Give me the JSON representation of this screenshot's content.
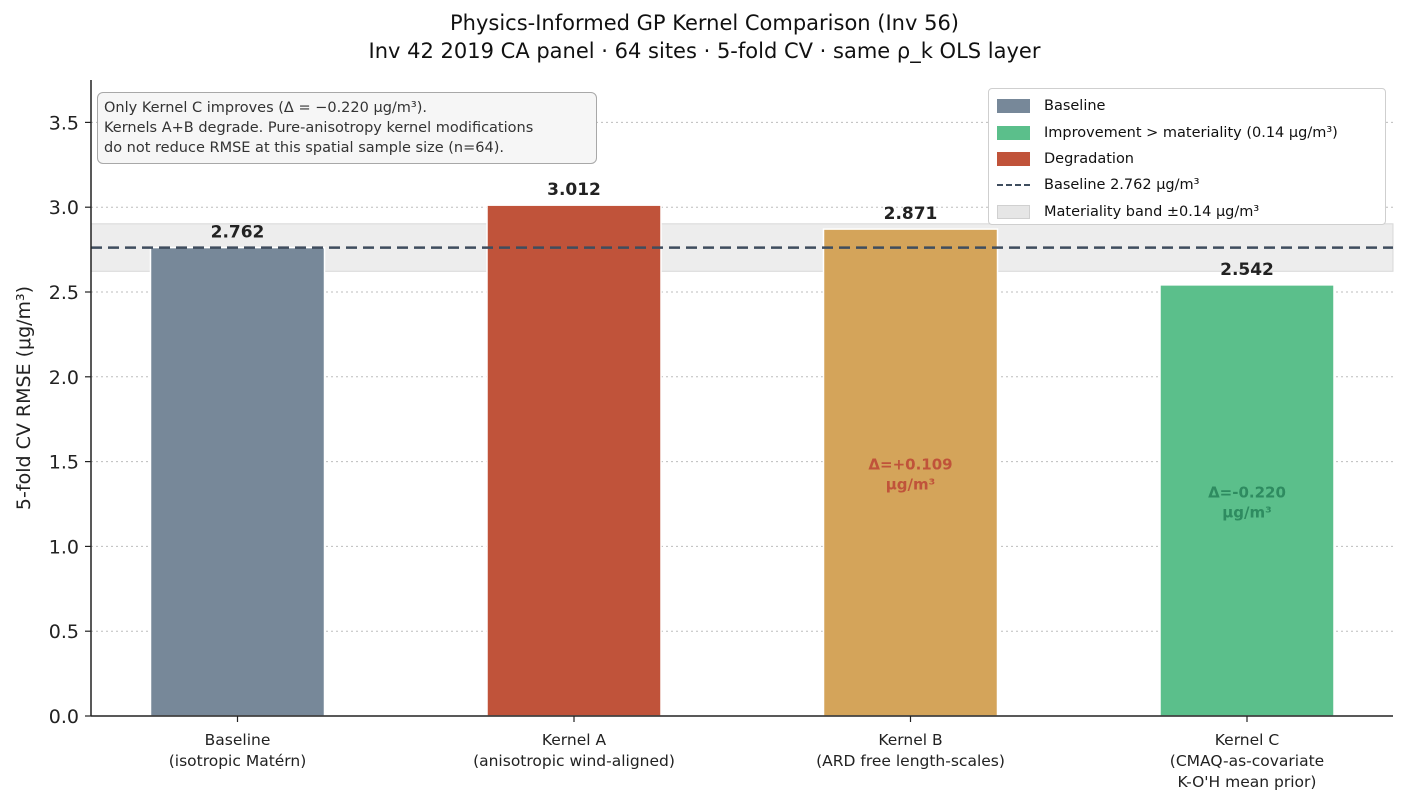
{
  "title": "Physics-Informed GP Kernel Comparison (Inv 56)",
  "subtitle": "Inv 42 2019 CA panel · 64 sites · 5-fold CV · same ρ_k OLS layer",
  "annotation": [
    "Only Kernel C improves (Δ = −0.220 μg/m³).",
    "Kernels A+B degrade. Pure-anisotropy kernel modifications",
    "do not reduce RMSE at this spatial sample size (n=64)."
  ],
  "legend": [
    {
      "label": "Baseline",
      "kind": "patch",
      "color": "#778899"
    },
    {
      "label": "Improvement > materiality (0.14 μg/m³)",
      "kind": "patch",
      "color": "#5bbf8b"
    },
    {
      "label": "Degradation",
      "kind": "patch",
      "color": "#c0533a"
    },
    {
      "label": "Baseline 2.762 μg/m³",
      "kind": "dashed-line",
      "color": "#3f4d5e"
    },
    {
      "label": "Materiality band ±0.14 μg/m³",
      "kind": "band",
      "color": "#e6e6e6"
    }
  ],
  "chart_data": {
    "type": "bar",
    "title": "Physics-Informed GP Kernel Comparison (Inv 56)",
    "subtitle": "Inv 42 2019 CA panel · 64 sites · 5-fold CV · same ρ_k OLS layer",
    "xlabel": "",
    "ylabel": "5-fold CV RMSE (μg/m³)",
    "ylim": [
      0,
      3.75
    ],
    "yticks": [
      0.0,
      0.5,
      1.0,
      1.5,
      2.0,
      2.5,
      3.0,
      3.5
    ],
    "ytick_labels": [
      "0.0",
      "0.5",
      "1.0",
      "1.5",
      "2.0",
      "2.5",
      "3.0",
      "3.5"
    ],
    "grid": "y dotted",
    "legend_position": "top-right",
    "categories": [
      [
        "Baseline",
        "(isotropic Matérn)"
      ],
      [
        "Kernel A",
        "(anisotropic wind-aligned)"
      ],
      [
        "Kernel B",
        "(ARD free length-scales)"
      ],
      [
        "Kernel C",
        "(CMAQ-as-covariate",
        "K-O'H mean prior)"
      ]
    ],
    "values": [
      2.762,
      3.012,
      2.871,
      2.542
    ],
    "value_labels": [
      "2.762",
      "3.012",
      "2.871",
      "2.542"
    ],
    "bar_colors": [
      "#778899",
      "#c0533a",
      "#d4a45a",
      "#5bbf8b"
    ],
    "delta_labels": [
      null,
      null,
      {
        "lines": [
          "Δ=+0.109",
          "μg/m³"
        ],
        "color": "#c0533a"
      },
      {
        "lines": [
          "Δ=-0.220",
          "μg/m³"
        ],
        "color": "#2e8b60"
      }
    ],
    "baseline": 2.762,
    "materiality_band": [
      2.622,
      2.902
    ]
  }
}
